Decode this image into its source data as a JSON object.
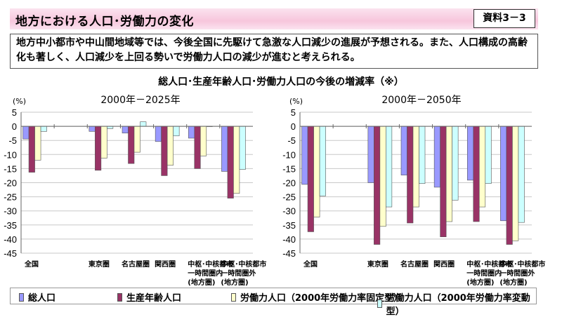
{
  "header": {
    "title": "地方における人口･労働力の変化",
    "badge": "資料3－3"
  },
  "description": "地方中小都市や中山間地域等では、今後全国に先駆けて急激な人口減少の進展が予想される。また、人口構成の高齢化も著しく、人口減少を上回る勢いで労働力人口の減少が進むと考えられる。",
  "subtitle": "総人口･生産年齢人口･労働力人口の今後の増減率（※）",
  "legend": [
    {
      "label": "総人口",
      "color": "#9999ff"
    },
    {
      "label": "生産年齢人口",
      "color": "#993366"
    },
    {
      "label": "労働力人口（2000年労働力率固定型）",
      "color": "#ffffcc"
    },
    {
      "label": "労働力人口（2000年労働力率変動型）",
      "color": "#ccffff"
    }
  ],
  "chart_data": [
    {
      "type": "bar",
      "title": "2000年－2025年",
      "ylabel": "(%)",
      "ylim": [
        -45,
        5
      ],
      "yticks": [
        5,
        0,
        -5,
        -10,
        -15,
        -20,
        -25,
        -30,
        -35,
        -40,
        -45
      ],
      "grid": true,
      "categories": [
        "全国",
        "",
        "東京圏",
        "名古屋圏",
        "関西圏",
        "中枢･中核都市\n一時間圏内\n(地方圏)",
        "中枢･中核都市\n一時間圏外\n(地方圏)"
      ],
      "series": [
        {
          "name": "総人口",
          "values": [
            -4.5,
            null,
            -1.8,
            -2.4,
            -5.4,
            -4.2,
            -16.0
          ]
        },
        {
          "name": "生産年齢人口",
          "values": [
            -16.3,
            null,
            -15.6,
            -13.2,
            -17.5,
            -15.0,
            -25.5
          ]
        },
        {
          "name": "労働力人口（2000年労働力率固定型）",
          "values": [
            -12.0,
            null,
            -11.3,
            -9.2,
            -13.8,
            -10.5,
            -23.8
          ]
        },
        {
          "name": "労働力人口（2000年労働力率変動型）",
          "values": [
            -1.8,
            null,
            -0.8,
            1.6,
            -3.4,
            0,
            -15.3
          ]
        }
      ]
    },
    {
      "type": "bar",
      "title": "2000年－2050年",
      "ylabel": "(%)",
      "ylim": [
        -45,
        5
      ],
      "yticks": [
        5,
        0,
        -5,
        -10,
        -15,
        -20,
        -25,
        -30,
        -35,
        -40,
        -45
      ],
      "grid": true,
      "categories": [
        "全国",
        "",
        "東京圏",
        "名古屋圏",
        "関西圏",
        "中枢･中核都市\n一時間圏内\n(地方圏)",
        "中枢･中核都市\n一時間圏外\n(地方圏)"
      ],
      "series": [
        {
          "name": "総人口",
          "values": [
            -20.6,
            null,
            -20.0,
            -17.3,
            -21.6,
            -19.1,
            -33.5
          ]
        },
        {
          "name": "生産年齢人口",
          "values": [
            -37.4,
            null,
            -41.9,
            -34.3,
            -39.2,
            -33.8,
            -41.9
          ]
        },
        {
          "name": "労働力人口（2000年労働力率固定型）",
          "values": [
            -32.2,
            null,
            -35.5,
            -28.6,
            -33.8,
            -28.6,
            -40.6
          ]
        },
        {
          "name": "労働力人口（2000年労働力率変動型）",
          "values": [
            -24.7,
            null,
            -28.6,
            -20.3,
            -26.2,
            -20.3,
            -34.1
          ]
        }
      ]
    }
  ]
}
